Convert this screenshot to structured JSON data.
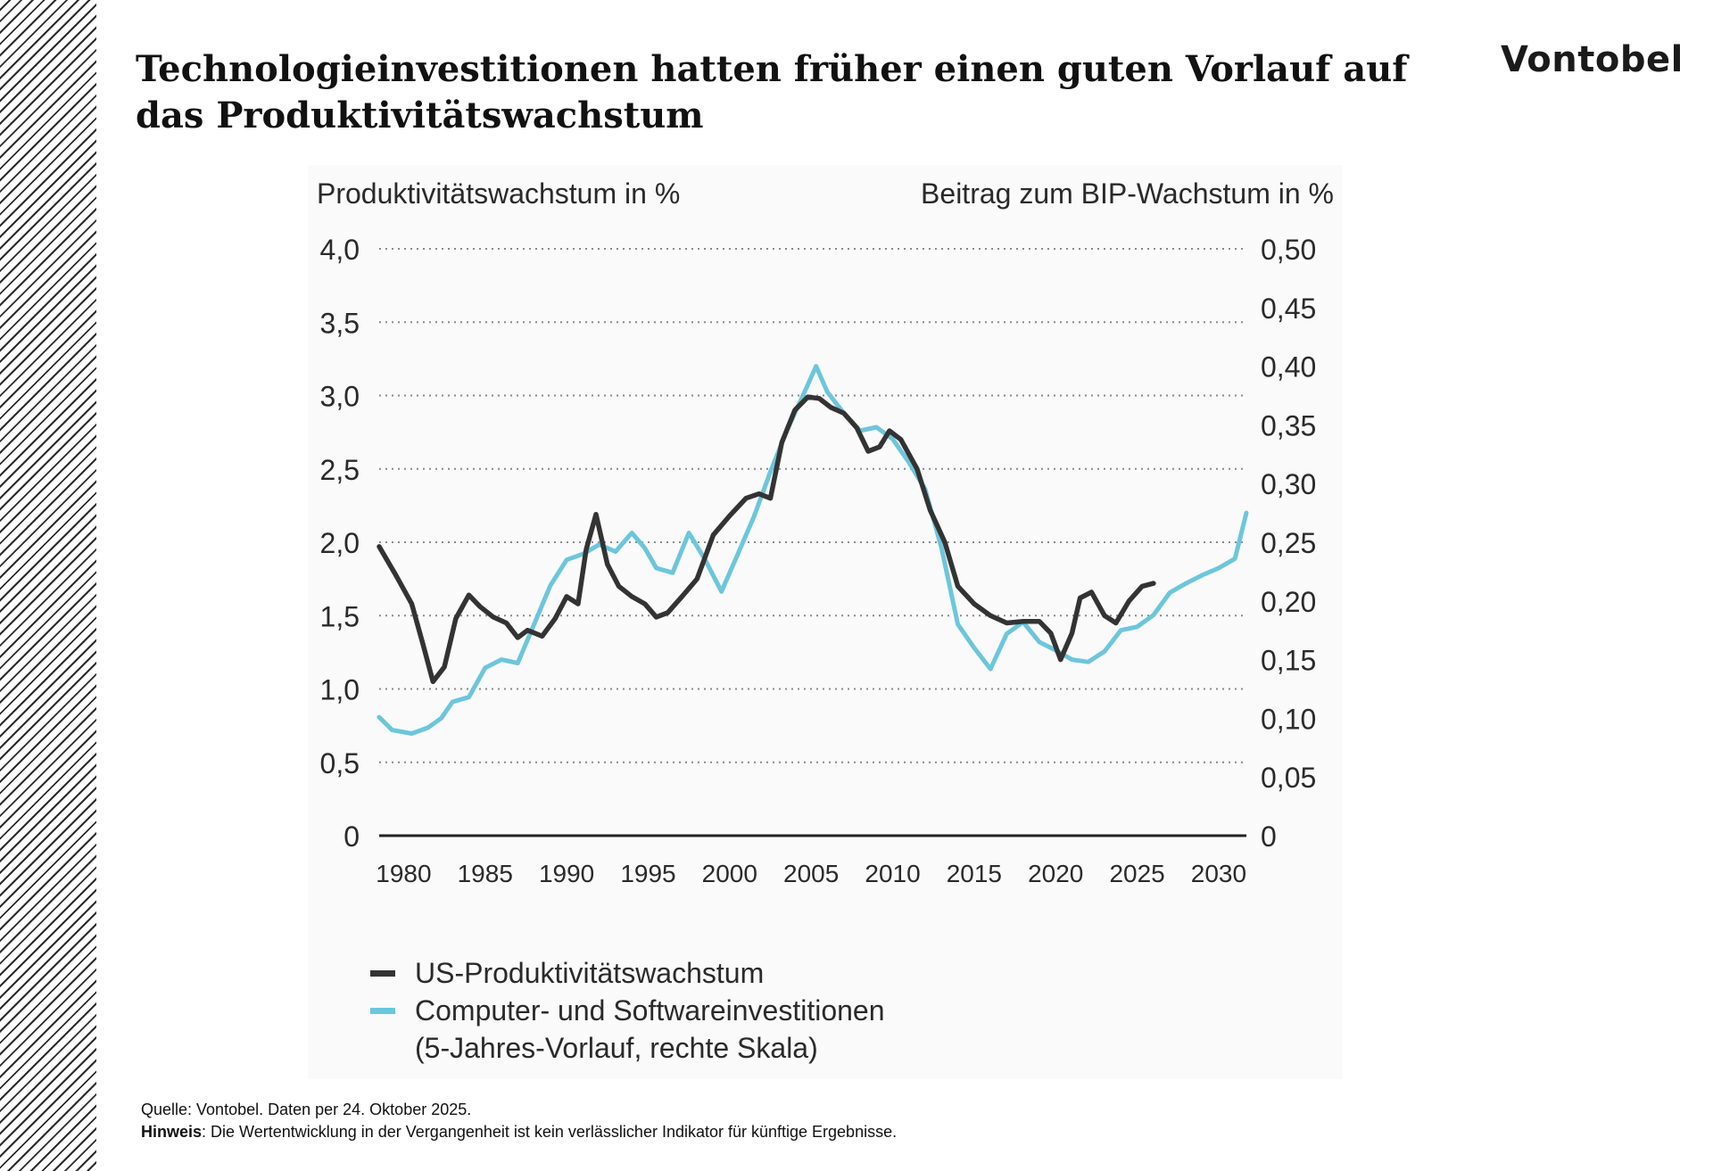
{
  "title": "Technologieinvestitionen hatten früher einen guten Vorlauf auf das Produktivitätswachstum",
  "logo": "Vontobel",
  "footer": {
    "source": "Quelle: Vontobel. Daten per 24. Oktober 2025.",
    "note_label": "Hinweis",
    "note_text": ": Die Wertentwicklung in der Vergangenheit ist kein verlässlicher Indikator für künftige Ergebnisse."
  },
  "colors": {
    "productivity": "#333333",
    "investment": "#6cc6dc",
    "grid": "#8a8a8a",
    "axis": "#222222"
  },
  "chart_data": {
    "type": "line",
    "ylabel_left": "Produktivitätswachstum in %",
    "ylabel_right": "Beitrag zum BIP-Wachstum in %",
    "ylim_left": [
      0,
      4.0
    ],
    "ylim_right": [
      0,
      0.5
    ],
    "xlim": [
      1978.5,
      2031.7
    ],
    "yticks_left": [
      "0",
      "0,5",
      "1,0",
      "1,5",
      "2,0",
      "2,5",
      "3,0",
      "3,5",
      "4,0"
    ],
    "yticks_right": [
      "0",
      "0,05",
      "0,10",
      "0,15",
      "0,20",
      "0,25",
      "0,30",
      "0,35",
      "0,40",
      "0,45",
      "0,50"
    ],
    "xticks": [
      "1980",
      "1985",
      "1990",
      "1995",
      "2000",
      "2005",
      "2010",
      "2015",
      "2020",
      "2025",
      "2030"
    ],
    "grid": "dotted horizontal",
    "series": [
      {
        "name": "US-Produktivitätswachstum",
        "axis": "left",
        "points": [
          [
            1978.5,
            1.97
          ],
          [
            1979.5,
            1.78
          ],
          [
            1980.5,
            1.58
          ],
          [
            1981.2,
            1.3
          ],
          [
            1981.8,
            1.05
          ],
          [
            1982.5,
            1.15
          ],
          [
            1983.2,
            1.48
          ],
          [
            1984,
            1.64
          ],
          [
            1984.7,
            1.56
          ],
          [
            1985.5,
            1.49
          ],
          [
            1986.3,
            1.45
          ],
          [
            1987,
            1.35
          ],
          [
            1987.6,
            1.4
          ],
          [
            1988.5,
            1.36
          ],
          [
            1989.3,
            1.48
          ],
          [
            1990,
            1.63
          ],
          [
            1990.7,
            1.58
          ],
          [
            1991.2,
            1.95
          ],
          [
            1991.8,
            2.19
          ],
          [
            1992.5,
            1.85
          ],
          [
            1993.2,
            1.7
          ],
          [
            1994,
            1.63
          ],
          [
            1994.8,
            1.58
          ],
          [
            1995.5,
            1.49
          ],
          [
            1996.2,
            1.52
          ],
          [
            1997,
            1.62
          ],
          [
            1998,
            1.75
          ],
          [
            1999,
            2.05
          ],
          [
            2000,
            2.18
          ],
          [
            2001,
            2.3
          ],
          [
            2001.8,
            2.33
          ],
          [
            2002.5,
            2.3
          ],
          [
            2003.2,
            2.68
          ],
          [
            2004,
            2.9
          ],
          [
            2004.8,
            2.99
          ],
          [
            2005.5,
            2.98
          ],
          [
            2006.2,
            2.92
          ],
          [
            2007,
            2.88
          ],
          [
            2007.8,
            2.78
          ],
          [
            2008.5,
            2.62
          ],
          [
            2009.2,
            2.65
          ],
          [
            2009.8,
            2.76
          ],
          [
            2010.5,
            2.7
          ],
          [
            2011.5,
            2.5
          ],
          [
            2012.3,
            2.22
          ],
          [
            2013.2,
            2.0
          ],
          [
            2014,
            1.7
          ],
          [
            2015,
            1.58
          ],
          [
            2016,
            1.5
          ],
          [
            2017,
            1.45
          ],
          [
            2018,
            1.46
          ],
          [
            2019,
            1.46
          ],
          [
            2019.7,
            1.38
          ],
          [
            2020.3,
            1.2
          ],
          [
            2021,
            1.38
          ],
          [
            2021.5,
            1.62
          ],
          [
            2022.2,
            1.66
          ],
          [
            2023,
            1.5
          ],
          [
            2023.7,
            1.45
          ],
          [
            2024.5,
            1.6
          ],
          [
            2025.3,
            1.7
          ],
          [
            2026,
            1.72
          ]
        ]
      },
      {
        "name": "Computer- und Softwareinvestitionen",
        "name_line2": "(5-Jahres-Vorlauf, rechte Skala)",
        "axis": "right",
        "points": [
          [
            1978.5,
            0.101
          ],
          [
            1979.3,
            0.09
          ],
          [
            1980.5,
            0.087
          ],
          [
            1981.5,
            0.092
          ],
          [
            1982.3,
            0.1
          ],
          [
            1983,
            0.114
          ],
          [
            1984,
            0.118
          ],
          [
            1985,
            0.143
          ],
          [
            1986,
            0.15
          ],
          [
            1987,
            0.147
          ],
          [
            1988,
            0.18
          ],
          [
            1989,
            0.213
          ],
          [
            1990,
            0.235
          ],
          [
            1991,
            0.24
          ],
          [
            1992,
            0.248
          ],
          [
            1993,
            0.242
          ],
          [
            1994,
            0.258
          ],
          [
            1994.8,
            0.245
          ],
          [
            1995.5,
            0.228
          ],
          [
            1996.5,
            0.224
          ],
          [
            1997.5,
            0.258
          ],
          [
            1998.5,
            0.235
          ],
          [
            1999.5,
            0.208
          ],
          [
            2000.5,
            0.24
          ],
          [
            2001.5,
            0.272
          ],
          [
            2002.5,
            0.31
          ],
          [
            2003.5,
            0.345
          ],
          [
            2004.5,
            0.375
          ],
          [
            2005.3,
            0.4
          ],
          [
            2006,
            0.378
          ],
          [
            2007,
            0.36
          ],
          [
            2008,
            0.345
          ],
          [
            2009,
            0.348
          ],
          [
            2010,
            0.338
          ],
          [
            2011,
            0.318
          ],
          [
            2012,
            0.295
          ],
          [
            2013,
            0.245
          ],
          [
            2014,
            0.18
          ],
          [
            2015,
            0.16
          ],
          [
            2016,
            0.142
          ],
          [
            2017,
            0.172
          ],
          [
            2018,
            0.182
          ],
          [
            2019,
            0.165
          ],
          [
            2020,
            0.158
          ],
          [
            2021,
            0.15
          ],
          [
            2022,
            0.148
          ],
          [
            2023,
            0.157
          ],
          [
            2024,
            0.175
          ],
          [
            2025,
            0.178
          ],
          [
            2026,
            0.188
          ],
          [
            2027,
            0.207
          ],
          [
            2028,
            0.215
          ],
          [
            2029,
            0.222
          ],
          [
            2030,
            0.228
          ],
          [
            2031,
            0.236
          ],
          [
            2031.7,
            0.275
          ]
        ]
      }
    ]
  }
}
